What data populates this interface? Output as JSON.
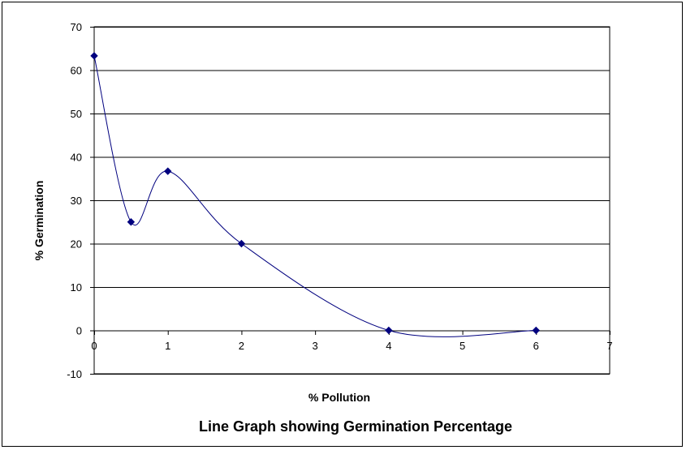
{
  "chart_data": {
    "type": "line",
    "title": "Line Graph showing Germination Percentage",
    "xlabel": "% Pollution",
    "ylabel": "% Germination",
    "xlim": [
      0,
      7
    ],
    "ylim": [
      -10,
      70
    ],
    "xticks": [
      0,
      1,
      2,
      3,
      4,
      5,
      6,
      7
    ],
    "yticks": [
      -10,
      0,
      10,
      20,
      30,
      40,
      50,
      60,
      70
    ],
    "grid": "horizontal",
    "smooth": true,
    "series": [
      {
        "name": "Germination",
        "x": [
          0,
          0.5,
          1,
          2,
          4,
          6
        ],
        "y": [
          63.3,
          25,
          36.7,
          20,
          0,
          0
        ]
      }
    ]
  },
  "colors": {
    "line": "#00007f",
    "marker": "#00007f",
    "grid": "#000000",
    "axis": "#000000"
  }
}
